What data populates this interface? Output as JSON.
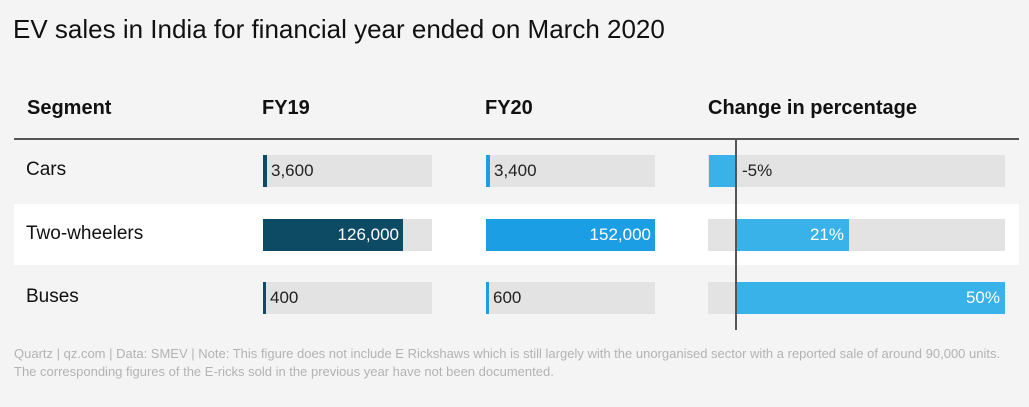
{
  "title": "EV sales in India for financial year ended on March 2020",
  "headers": {
    "segment": "Segment",
    "fy19": "FY19",
    "fy20": "FY20",
    "change": "Change in percentage"
  },
  "rows": [
    {
      "segment": "Cars",
      "fy19_label": "3,600",
      "fy20_label": "3,400",
      "change_label": "-5%"
    },
    {
      "segment": "Two-wheelers",
      "fy19_label": "126,000",
      "fy20_label": "152,000",
      "change_label": "21%"
    },
    {
      "segment": "Buses",
      "fy19_label": "400",
      "fy20_label": "600",
      "change_label": "50%"
    }
  ],
  "footer": "Quartz | qz.com | Data: SMEV | Note: This figure does not include E Rickshaws which is still largely with the unorganised sector with a reported sale of around 90,000 units. The corresponding figures of the E-ricks sold in the previous year have not been documented.",
  "colors": {
    "fy19": "#0d4a63",
    "fy20": "#1b9ee3",
    "change": "#39b2ea",
    "track": "#e3e3e3",
    "stripe": "#ffffff"
  },
  "chart_data": {
    "type": "table",
    "columns": [
      "Segment",
      "FY19",
      "FY20",
      "Change in percentage"
    ],
    "categories": [
      "Cars",
      "Two-wheelers",
      "Buses"
    ],
    "series": [
      {
        "name": "FY19",
        "values": [
          3600,
          126000,
          400
        ]
      },
      {
        "name": "FY20",
        "values": [
          3400,
          152000,
          600
        ]
      },
      {
        "name": "Change in percentage",
        "values": [
          -5,
          21,
          50
        ]
      }
    ],
    "ylim_sales": [
      0,
      152000
    ],
    "ylim_change": [
      -10,
      50
    ]
  }
}
